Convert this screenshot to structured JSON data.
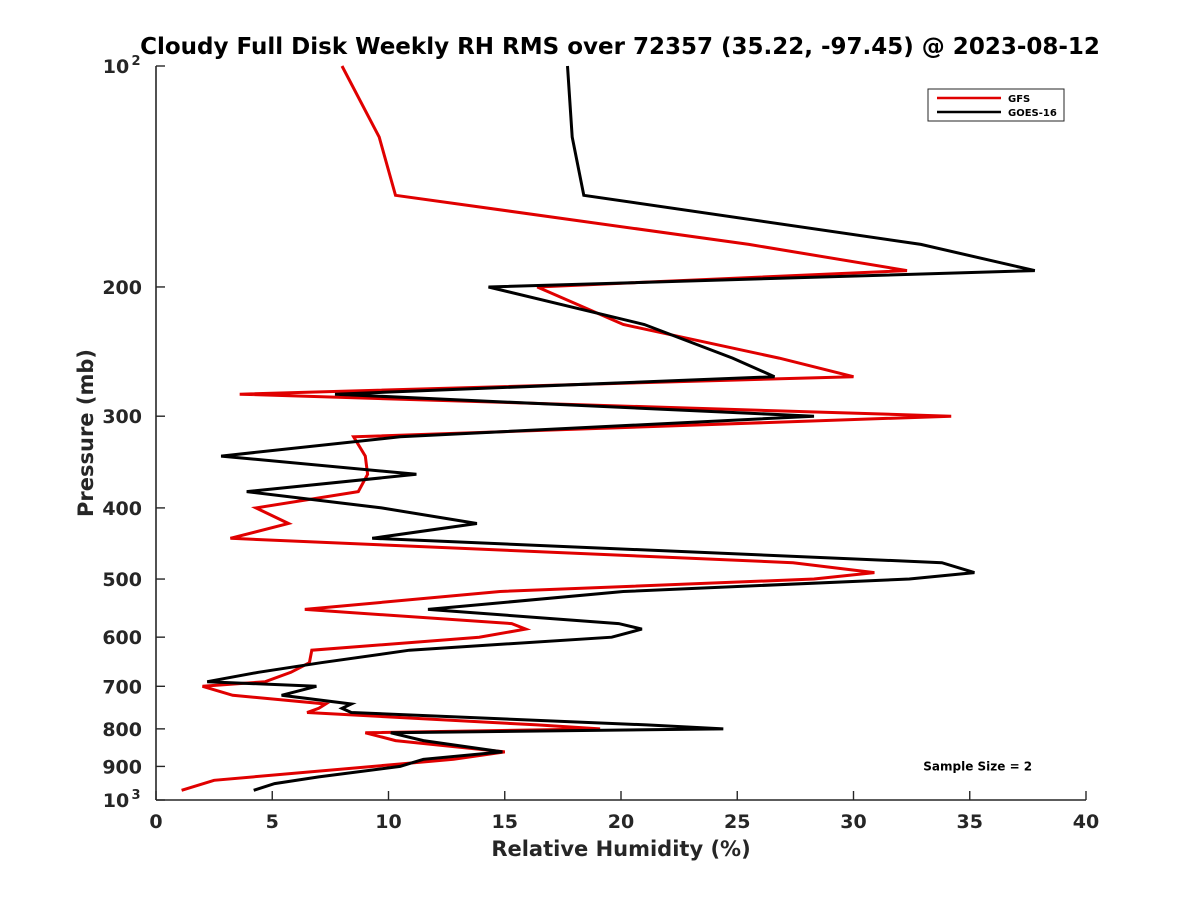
{
  "chart_data": {
    "type": "line",
    "title": "Cloudy Full Disk Weekly RH RMS over 72357 (35.22, -97.45) @ 2023-08-12",
    "xlabel": "Relative Humidity (%)",
    "ylabel": "Pressure (mb)",
    "xlim": [
      0,
      40
    ],
    "ylim": [
      1000,
      100
    ],
    "y_scale": "log",
    "y_reversed": true,
    "grid": false,
    "legend_position": "top-right",
    "x_ticks": [
      "0",
      "5",
      "10",
      "15",
      "20",
      "25",
      "30",
      "35",
      "40"
    ],
    "y_ticks": [
      {
        "value": 100,
        "base": "10",
        "exp": "2"
      },
      {
        "value": 200,
        "label": "200"
      },
      {
        "value": 300,
        "label": "300"
      },
      {
        "value": 400,
        "label": "400"
      },
      {
        "value": 500,
        "label": "500"
      },
      {
        "value": 600,
        "label": "600"
      },
      {
        "value": 700,
        "label": "700"
      },
      {
        "value": 800,
        "label": "800"
      },
      {
        "value": 900,
        "label": "900"
      },
      {
        "value": 1000,
        "base": "10",
        "exp": "3"
      }
    ],
    "series": [
      {
        "name": "GFS",
        "color": "#e00000",
        "points": [
          [
            8.0,
            100
          ],
          [
            9.6,
            125
          ],
          [
            10.3,
            150
          ],
          [
            25.5,
            175
          ],
          [
            32.3,
            190
          ],
          [
            16.4,
            200
          ],
          [
            20.1,
            225
          ],
          [
            26.8,
            250
          ],
          [
            30.0,
            265
          ],
          [
            3.6,
            280
          ],
          [
            34.2,
            300
          ],
          [
            8.5,
            320
          ],
          [
            9.0,
            340
          ],
          [
            9.1,
            360
          ],
          [
            8.7,
            380
          ],
          [
            4.3,
            400
          ],
          [
            5.7,
            420
          ],
          [
            3.2,
            440
          ],
          [
            27.4,
            475
          ],
          [
            30.9,
            490
          ],
          [
            28.3,
            500
          ],
          [
            14.8,
            520
          ],
          [
            6.4,
            550
          ],
          [
            15.3,
            575
          ],
          [
            15.9,
            585
          ],
          [
            13.9,
            600
          ],
          [
            6.7,
            625
          ],
          [
            6.6,
            650
          ],
          [
            5.8,
            670
          ],
          [
            4.7,
            690
          ],
          [
            2.0,
            700
          ],
          [
            3.3,
            720
          ],
          [
            7.3,
            740
          ],
          [
            7.0,
            750
          ],
          [
            6.5,
            760
          ],
          [
            16.4,
            790
          ],
          [
            19.1,
            800
          ],
          [
            9.0,
            810
          ],
          [
            10.3,
            830
          ],
          [
            15.0,
            860
          ],
          [
            12.8,
            880
          ],
          [
            2.5,
            940
          ],
          [
            1.1,
            970
          ]
        ]
      },
      {
        "name": "GOES-16",
        "color": "#000000",
        "points": [
          [
            17.7,
            100
          ],
          [
            17.9,
            125
          ],
          [
            18.4,
            150
          ],
          [
            32.9,
            175
          ],
          [
            37.8,
            190
          ],
          [
            14.3,
            200
          ],
          [
            21.0,
            225
          ],
          [
            24.8,
            250
          ],
          [
            26.6,
            265
          ],
          [
            7.7,
            280
          ],
          [
            28.3,
            300
          ],
          [
            10.5,
            320
          ],
          [
            2.8,
            340
          ],
          [
            11.2,
            360
          ],
          [
            3.9,
            380
          ],
          [
            9.7,
            400
          ],
          [
            13.8,
            420
          ],
          [
            9.3,
            440
          ],
          [
            33.8,
            475
          ],
          [
            35.2,
            490
          ],
          [
            32.4,
            500
          ],
          [
            20.1,
            520
          ],
          [
            11.7,
            550
          ],
          [
            19.9,
            575
          ],
          [
            20.9,
            585
          ],
          [
            19.6,
            600
          ],
          [
            10.9,
            625
          ],
          [
            7.1,
            650
          ],
          [
            4.4,
            670
          ],
          [
            2.2,
            690
          ],
          [
            6.9,
            700
          ],
          [
            5.4,
            720
          ],
          [
            8.4,
            740
          ],
          [
            8.0,
            750
          ],
          [
            8.4,
            760
          ],
          [
            21.1,
            790
          ],
          [
            24.4,
            800
          ],
          [
            10.1,
            810
          ],
          [
            11.5,
            830
          ],
          [
            14.9,
            860
          ],
          [
            11.5,
            880
          ],
          [
            10.5,
            900
          ],
          [
            7.0,
            930
          ],
          [
            5.1,
            950
          ],
          [
            4.2,
            970
          ]
        ]
      }
    ],
    "annotations": [
      {
        "text": "Sample Size = 2",
        "x": 33,
        "y": 900
      }
    ]
  }
}
